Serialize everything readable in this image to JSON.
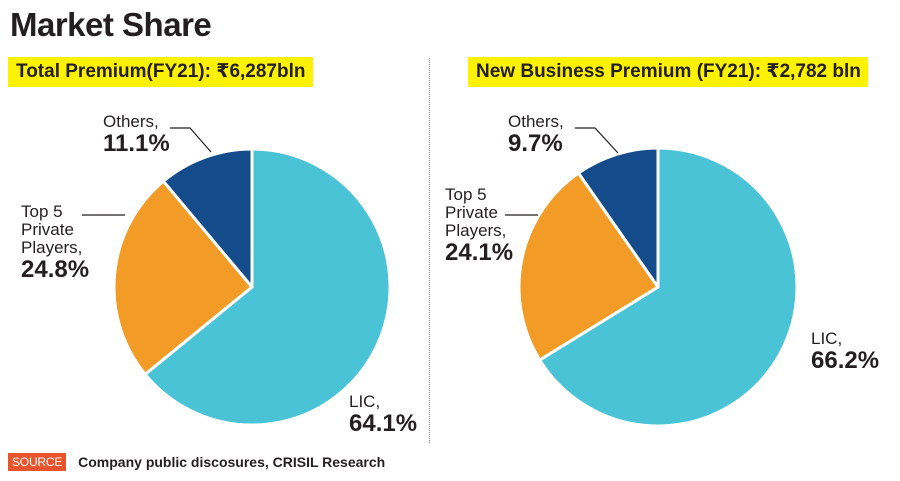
{
  "header": {
    "title": "Market Share"
  },
  "chart_data": [
    {
      "type": "pie",
      "title": "Total Premium(FY21): ₹6,287bln",
      "start_angle": "12 o'clock",
      "direction": "clockwise",
      "slices": [
        {
          "label": "LIC,",
          "name": "LIC",
          "value": 64.1,
          "value_label": "64.1%",
          "color": "#4bc3d6"
        },
        {
          "label": "Top 5 Private Players,",
          "name": "Top 5 Private Players",
          "label_lines": [
            "Top 5",
            "Private",
            "Players,"
          ],
          "value": 24.8,
          "value_label": "24.8%",
          "color": "#f29b27"
        },
        {
          "label": "Others,",
          "name": "Others",
          "value": 11.1,
          "value_label": "11.1%",
          "color": "#134b8b"
        }
      ]
    },
    {
      "type": "pie",
      "title": "New Business Premium (FY21): ₹2,782 bln",
      "start_angle": "12 o'clock",
      "direction": "clockwise",
      "slices": [
        {
          "label": "LIC,",
          "name": "LIC",
          "value": 66.2,
          "value_label": "66.2%",
          "color": "#4bc3d6"
        },
        {
          "label": "Top 5 Private Players,",
          "name": "Top 5 Private Players",
          "label_lines": [
            "Top 5",
            "Private",
            "Players,"
          ],
          "value": 24.1,
          "value_label": "24.1%",
          "color": "#f29b27"
        },
        {
          "label": "Others,",
          "name": "Others",
          "value": 9.7,
          "value_label": "9.7%",
          "color": "#134b8b"
        }
      ]
    }
  ],
  "footer": {
    "source_tag": "SOURCE",
    "source_text": "Company public discosures, CRISIL Research",
    "source_tag_color": "#e8542b"
  },
  "colors": {
    "highlight": "#fff200",
    "text": "#231f20"
  }
}
